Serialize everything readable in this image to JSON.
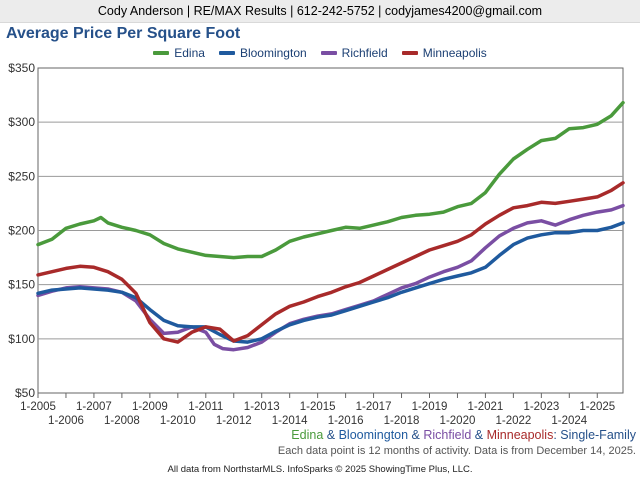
{
  "header": {
    "contact": "Cody Anderson | RE/MAX Results | 612-242-5752 | codyjames4200@gmail.com"
  },
  "footer": {
    "series": [
      {
        "text": "Edina",
        "color": "#4a9a3c"
      },
      {
        "text": " & ",
        "color": "#26518a"
      },
      {
        "text": "Bloomington",
        "color": "#1f5a9e"
      },
      {
        "text": " & ",
        "color": "#26518a"
      },
      {
        "text": "Richfield",
        "color": "#7a4ea3"
      },
      {
        "text": " & ",
        "color": "#26518a"
      },
      {
        "text": "Minneapolis",
        "color": "#a82a2a"
      },
      {
        "text": ": Single-Family",
        "color": "#26518a"
      }
    ],
    "note": "Each data point is 12 months of activity. Data is from December 14, 2025.",
    "source": "All data from NorthstarMLS. InfoSparks © 2025 ShowingTime Plus, LLC."
  },
  "chart_data": {
    "type": "line",
    "title": "Average Price Per Square Foot",
    "xlabel": "",
    "ylabel": "",
    "ylim": [
      50,
      350
    ],
    "xlim": [
      2005.0,
      2025.92
    ],
    "grid": true,
    "legend_position": "top",
    "y_ticks": [
      50,
      100,
      150,
      200,
      250,
      300,
      350
    ],
    "y_tick_labels": [
      "$50",
      "$100",
      "$150",
      "$200",
      "$250",
      "$300",
      "$350"
    ],
    "x_ticks": [
      2005,
      2006,
      2007,
      2008,
      2009,
      2010,
      2011,
      2012,
      2013,
      2014,
      2015,
      2016,
      2017,
      2018,
      2019,
      2020,
      2021,
      2022,
      2023,
      2024,
      2025
    ],
    "x_tick_labels": [
      "1-2005",
      "1-2006",
      "1-2007",
      "1-2008",
      "1-2009",
      "1-2010",
      "1-2011",
      "1-2012",
      "1-2013",
      "1-2014",
      "1-2015",
      "1-2016",
      "1-2017",
      "1-2018",
      "1-2019",
      "1-2020",
      "1-2021",
      "1-2022",
      "1-2023",
      "1-2024",
      "1-2025"
    ],
    "series": [
      {
        "name": "Edina",
        "color": "#4a9a3c",
        "x": [
          2005.0,
          2005.5,
          2006.0,
          2006.5,
          2007.0,
          2007.25,
          2007.5,
          2008.0,
          2008.5,
          2009.0,
          2009.5,
          2010.0,
          2010.5,
          2011.0,
          2011.5,
          2012.0,
          2012.5,
          2013.0,
          2013.5,
          2014.0,
          2014.5,
          2015.0,
          2015.5,
          2016.0,
          2016.5,
          2017.0,
          2017.5,
          2018.0,
          2018.5,
          2019.0,
          2019.5,
          2020.0,
          2020.5,
          2021.0,
          2021.5,
          2022.0,
          2022.5,
          2023.0,
          2023.5,
          2024.0,
          2024.5,
          2025.0,
          2025.5,
          2025.92
        ],
        "y": [
          187,
          192,
          202,
          206,
          209,
          212,
          207,
          203,
          200,
          196,
          188,
          183,
          180,
          177,
          176,
          175,
          176,
          176,
          182,
          190,
          194,
          197,
          200,
          203,
          202,
          205,
          208,
          212,
          214,
          215,
          217,
          222,
          225,
          235,
          252,
          266,
          275,
          283,
          285,
          294,
          295,
          298,
          306,
          318
        ]
      },
      {
        "name": "Bloomington",
        "color": "#1f5a9e",
        "x": [
          2005.0,
          2005.5,
          2006.0,
          2006.5,
          2007.0,
          2007.5,
          2008.0,
          2008.5,
          2009.0,
          2009.5,
          2010.0,
          2010.5,
          2011.0,
          2011.5,
          2012.0,
          2012.5,
          2013.0,
          2013.5,
          2014.0,
          2014.5,
          2015.0,
          2015.5,
          2016.0,
          2016.5,
          2017.0,
          2017.5,
          2018.0,
          2018.5,
          2019.0,
          2019.5,
          2020.0,
          2020.5,
          2021.0,
          2021.5,
          2022.0,
          2022.5,
          2023.0,
          2023.5,
          2024.0,
          2024.5,
          2025.0,
          2025.5,
          2025.92
        ],
        "y": [
          142,
          145,
          146,
          147,
          146,
          145,
          143,
          138,
          127,
          117,
          112,
          111,
          111,
          104,
          98,
          97,
          100,
          107,
          113,
          117,
          120,
          122,
          126,
          130,
          134,
          138,
          143,
          147,
          151,
          155,
          158,
          161,
          166,
          177,
          187,
          193,
          196,
          198,
          198,
          200,
          200,
          203,
          207
        ]
      },
      {
        "name": "Richfield",
        "color": "#7a4ea3",
        "x": [
          2005.0,
          2005.5,
          2006.0,
          2006.5,
          2007.0,
          2007.5,
          2008.0,
          2008.5,
          2009.0,
          2009.5,
          2010.0,
          2010.5,
          2011.0,
          2011.3,
          2011.6,
          2012.0,
          2012.5,
          2013.0,
          2013.5,
          2014.0,
          2014.5,
          2015.0,
          2015.5,
          2016.0,
          2016.5,
          2017.0,
          2017.5,
          2018.0,
          2018.5,
          2019.0,
          2019.5,
          2020.0,
          2020.5,
          2021.0,
          2021.5,
          2022.0,
          2022.5,
          2023.0,
          2023.5,
          2024.0,
          2024.5,
          2025.0,
          2025.5,
          2025.92
        ],
        "y": [
          140,
          144,
          147,
          148,
          147,
          146,
          143,
          135,
          118,
          105,
          106,
          111,
          106,
          95,
          91,
          90,
          92,
          97,
          106,
          114,
          118,
          121,
          123,
          127,
          131,
          135,
          141,
          147,
          151,
          157,
          162,
          166,
          172,
          184,
          195,
          202,
          207,
          209,
          205,
          210,
          214,
          217,
          219,
          223
        ]
      },
      {
        "name": "Minneapolis",
        "color": "#a82a2a",
        "x": [
          2005.0,
          2005.5,
          2006.0,
          2006.5,
          2007.0,
          2007.5,
          2008.0,
          2008.5,
          2009.0,
          2009.5,
          2010.0,
          2010.5,
          2011.0,
          2011.5,
          2012.0,
          2012.5,
          2013.0,
          2013.5,
          2014.0,
          2014.5,
          2015.0,
          2015.5,
          2016.0,
          2016.5,
          2017.0,
          2017.5,
          2018.0,
          2018.5,
          2019.0,
          2019.5,
          2020.0,
          2020.5,
          2021.0,
          2021.5,
          2022.0,
          2022.5,
          2023.0,
          2023.5,
          2024.0,
          2024.5,
          2025.0,
          2025.5,
          2025.92
        ],
        "y": [
          159,
          162,
          165,
          167,
          166,
          162,
          155,
          142,
          115,
          100,
          97,
          106,
          111,
          109,
          98,
          103,
          113,
          123,
          130,
          134,
          139,
          143,
          148,
          152,
          158,
          164,
          170,
          176,
          182,
          186,
          190,
          196,
          206,
          214,
          221,
          223,
          226,
          225,
          227,
          229,
          231,
          237,
          244
        ]
      }
    ]
  }
}
